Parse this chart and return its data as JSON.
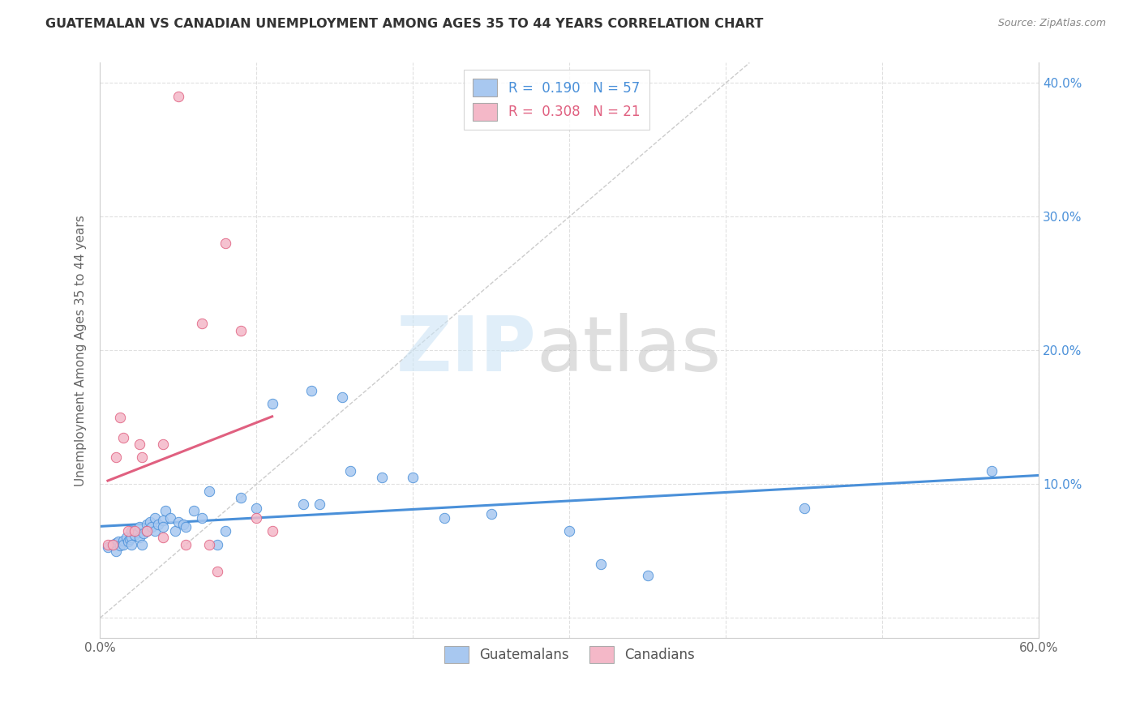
{
  "title": "GUATEMALAN VS CANADIAN UNEMPLOYMENT AMONG AGES 35 TO 44 YEARS CORRELATION CHART",
  "source": "Source: ZipAtlas.com",
  "ylabel": "Unemployment Among Ages 35 to 44 years",
  "xlim": [
    0.0,
    0.6
  ],
  "ylim": [
    -0.015,
    0.415
  ],
  "xticks": [
    0.0,
    0.1,
    0.2,
    0.3,
    0.4,
    0.5,
    0.6
  ],
  "xticklabels": [
    "0.0%",
    "",
    "",
    "",
    "",
    "",
    "60.0%"
  ],
  "yticks": [
    0.0,
    0.1,
    0.2,
    0.3,
    0.4
  ],
  "yticklabels": [
    "",
    "10.0%",
    "20.0%",
    "30.0%",
    "40.0%"
  ],
  "guatemalan_color": "#a8c8f0",
  "canadian_color": "#f4b8c8",
  "trend_guatemalan_color": "#4a90d9",
  "trend_canadian_color": "#e06080",
  "diagonal_color": "#cccccc",
  "background_color": "#ffffff",
  "grid_color": "#e0e0e0",
  "legend_guatemalan_R": "0.190",
  "legend_guatemalan_N": "57",
  "legend_canadian_R": "0.308",
  "legend_canadian_N": "21",
  "guatemalan_x": [
    0.005,
    0.008,
    0.01,
    0.01,
    0.012,
    0.013,
    0.015,
    0.015,
    0.017,
    0.018,
    0.019,
    0.02,
    0.02,
    0.02,
    0.022,
    0.024,
    0.025,
    0.025,
    0.027,
    0.028,
    0.03,
    0.03,
    0.032,
    0.033,
    0.035,
    0.035,
    0.037,
    0.04,
    0.04,
    0.042,
    0.045,
    0.048,
    0.05,
    0.053,
    0.055,
    0.06,
    0.065,
    0.07,
    0.075,
    0.08,
    0.09,
    0.1,
    0.11,
    0.13,
    0.135,
    0.14,
    0.155,
    0.16,
    0.18,
    0.2,
    0.22,
    0.25,
    0.3,
    0.32,
    0.35,
    0.45,
    0.57
  ],
  "guatemalan_y": [
    0.053,
    0.055,
    0.056,
    0.05,
    0.057,
    0.054,
    0.058,
    0.055,
    0.06,
    0.057,
    0.059,
    0.065,
    0.06,
    0.055,
    0.062,
    0.064,
    0.068,
    0.06,
    0.055,
    0.063,
    0.07,
    0.065,
    0.072,
    0.068,
    0.075,
    0.065,
    0.07,
    0.073,
    0.068,
    0.08,
    0.075,
    0.065,
    0.072,
    0.07,
    0.068,
    0.08,
    0.075,
    0.095,
    0.055,
    0.065,
    0.09,
    0.082,
    0.16,
    0.085,
    0.17,
    0.085,
    0.165,
    0.11,
    0.105,
    0.105,
    0.075,
    0.078,
    0.065,
    0.04,
    0.032,
    0.082,
    0.11
  ],
  "canadian_x": [
    0.005,
    0.008,
    0.01,
    0.013,
    0.015,
    0.018,
    0.022,
    0.025,
    0.027,
    0.03,
    0.04,
    0.04,
    0.05,
    0.055,
    0.065,
    0.07,
    0.075,
    0.08,
    0.09,
    0.1,
    0.11
  ],
  "canadian_y": [
    0.055,
    0.055,
    0.12,
    0.15,
    0.135,
    0.065,
    0.065,
    0.13,
    0.12,
    0.065,
    0.06,
    0.13,
    0.39,
    0.055,
    0.22,
    0.055,
    0.035,
    0.28,
    0.215,
    0.075,
    0.065
  ]
}
